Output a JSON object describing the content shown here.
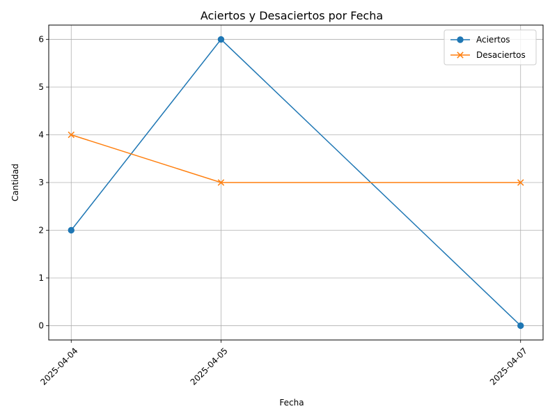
{
  "chart_data": {
    "type": "line",
    "title": "Aciertos y Desaciertos por Fecha",
    "xlabel": "Fecha",
    "ylabel": "Cantidad",
    "categories": [
      "2025-04-04",
      "2025-04-05",
      "2025-04-07"
    ],
    "x_dates": [
      "2025-04-04",
      "2025-04-05",
      "2025-04-07"
    ],
    "ylim": [
      -0.3,
      6.3
    ],
    "yticks": [
      0,
      1,
      2,
      3,
      4,
      5,
      6
    ],
    "grid": true,
    "legend_position": "top-right",
    "series": [
      {
        "name": "Aciertos",
        "values": [
          2,
          6,
          0
        ],
        "color": "#1f77b4",
        "marker": "circle"
      },
      {
        "name": "Desaciertos",
        "values": [
          4,
          3,
          3
        ],
        "color": "#ff7f0e",
        "marker": "x"
      }
    ]
  }
}
